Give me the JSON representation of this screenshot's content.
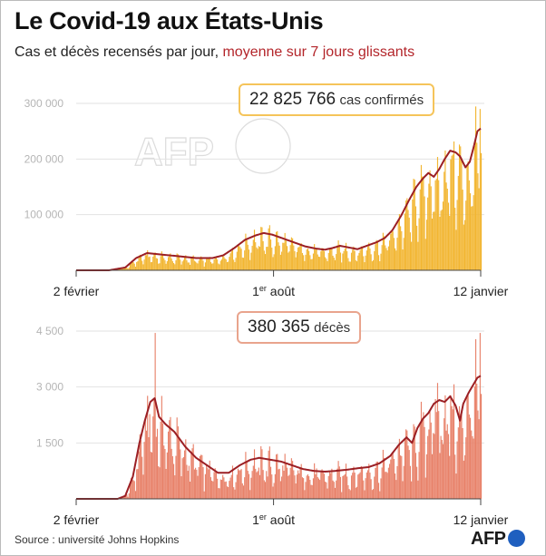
{
  "title": "Le Covid-19 aux États-Unis",
  "subtitle": {
    "main": "Cas et décès recensés par jour,",
    "highlight": "moyenne sur 7 jours glissants"
  },
  "source": "Source : université Johns Hopkins",
  "logo": "AFP",
  "watermark": "AFP",
  "colors": {
    "cases_bar": "#f2b632",
    "deaths_bar": "#e8826a",
    "average_line": "#9b1f24",
    "subtitle_highlight": "#b3252a"
  },
  "chart_data": [
    {
      "type": "bar",
      "id": "cases",
      "annotation": {
        "value": "22 825 766",
        "label": "cas confirmés"
      },
      "ylim": [
        0,
        300000
      ],
      "yticks": [
        {
          "v": 100000,
          "label": "100 000"
        },
        {
          "v": 200000,
          "label": "200 000"
        },
        {
          "v": 300000,
          "label": "300 000"
        }
      ],
      "xticks": [
        {
          "label": "2 février",
          "pos": "start"
        },
        {
          "label": "1",
          "sup": "er",
          "suffix": " août",
          "pos": "mid"
        },
        {
          "label": "12 janvier",
          "pos": "end"
        }
      ],
      "x_range": [
        "2020-02-02",
        "2021-01-12"
      ],
      "average_keypoints": [
        [
          0,
          0
        ],
        [
          30,
          0
        ],
        [
          45,
          5000
        ],
        [
          55,
          22000
        ],
        [
          65,
          31000
        ],
        [
          80,
          28000
        ],
        [
          95,
          25000
        ],
        [
          110,
          22000
        ],
        [
          125,
          22000
        ],
        [
          135,
          27000
        ],
        [
          145,
          40000
        ],
        [
          155,
          55000
        ],
        [
          165,
          63000
        ],
        [
          172,
          67000
        ],
        [
          180,
          64000
        ],
        [
          190,
          57000
        ],
        [
          200,
          50000
        ],
        [
          210,
          43000
        ],
        [
          220,
          39000
        ],
        [
          228,
          37000
        ],
        [
          235,
          40000
        ],
        [
          242,
          44000
        ],
        [
          250,
          41000
        ],
        [
          258,
          38000
        ],
        [
          265,
          43000
        ],
        [
          275,
          50000
        ],
        [
          283,
          58000
        ],
        [
          290,
          72000
        ],
        [
          298,
          98000
        ],
        [
          305,
          125000
        ],
        [
          312,
          150000
        ],
        [
          318,
          165000
        ],
        [
          323,
          175000
        ],
        [
          328,
          168000
        ],
        [
          333,
          182000
        ],
        [
          338,
          200000
        ],
        [
          343,
          215000
        ],
        [
          348,
          212000
        ],
        [
          352,
          205000
        ],
        [
          357,
          185000
        ],
        [
          361,
          195000
        ],
        [
          365,
          225000
        ],
        [
          368,
          250000
        ],
        [
          371,
          255000
        ]
      ],
      "peak_daily": 290000
    },
    {
      "type": "bar",
      "id": "deaths",
      "annotation": {
        "value": "380 365",
        "label": "décès"
      },
      "ylim": [
        0,
        4500
      ],
      "yticks": [
        {
          "v": 1500,
          "label": "1 500"
        },
        {
          "v": 3000,
          "label": "3 000"
        },
        {
          "v": 4500,
          "label": "4 500"
        }
      ],
      "xticks": [
        {
          "label": "2 février",
          "pos": "start"
        },
        {
          "label": "1",
          "sup": "er",
          "suffix": " août",
          "pos": "mid"
        },
        {
          "label": "12 janvier",
          "pos": "end"
        }
      ],
      "x_range": [
        "2020-02-02",
        "2021-01-12"
      ],
      "average_keypoints": [
        [
          0,
          0
        ],
        [
          38,
          0
        ],
        [
          45,
          80
        ],
        [
          52,
          600
        ],
        [
          58,
          1500
        ],
        [
          63,
          2100
        ],
        [
          68,
          2600
        ],
        [
          72,
          2700
        ],
        [
          76,
          2200
        ],
        [
          82,
          2000
        ],
        [
          90,
          1800
        ],
        [
          100,
          1400
        ],
        [
          110,
          1100
        ],
        [
          120,
          900
        ],
        [
          130,
          700
        ],
        [
          140,
          700
        ],
        [
          150,
          900
        ],
        [
          160,
          1050
        ],
        [
          168,
          1100
        ],
        [
          178,
          1050
        ],
        [
          188,
          1000
        ],
        [
          198,
          900
        ],
        [
          208,
          800
        ],
        [
          218,
          750
        ],
        [
          228,
          730
        ],
        [
          238,
          750
        ],
        [
          248,
          780
        ],
        [
          258,
          820
        ],
        [
          268,
          850
        ],
        [
          278,
          950
        ],
        [
          288,
          1150
        ],
        [
          296,
          1450
        ],
        [
          303,
          1650
        ],
        [
          308,
          1500
        ],
        [
          313,
          1900
        ],
        [
          318,
          2150
        ],
        [
          323,
          2300
        ],
        [
          328,
          2550
        ],
        [
          333,
          2650
        ],
        [
          338,
          2600
        ],
        [
          343,
          2750
        ],
        [
          348,
          2500
        ],
        [
          352,
          2100
        ],
        [
          355,
          2550
        ],
        [
          360,
          2850
        ],
        [
          364,
          3050
        ],
        [
          368,
          3250
        ],
        [
          371,
          3300
        ]
      ],
      "peak_daily": 4450
    }
  ]
}
